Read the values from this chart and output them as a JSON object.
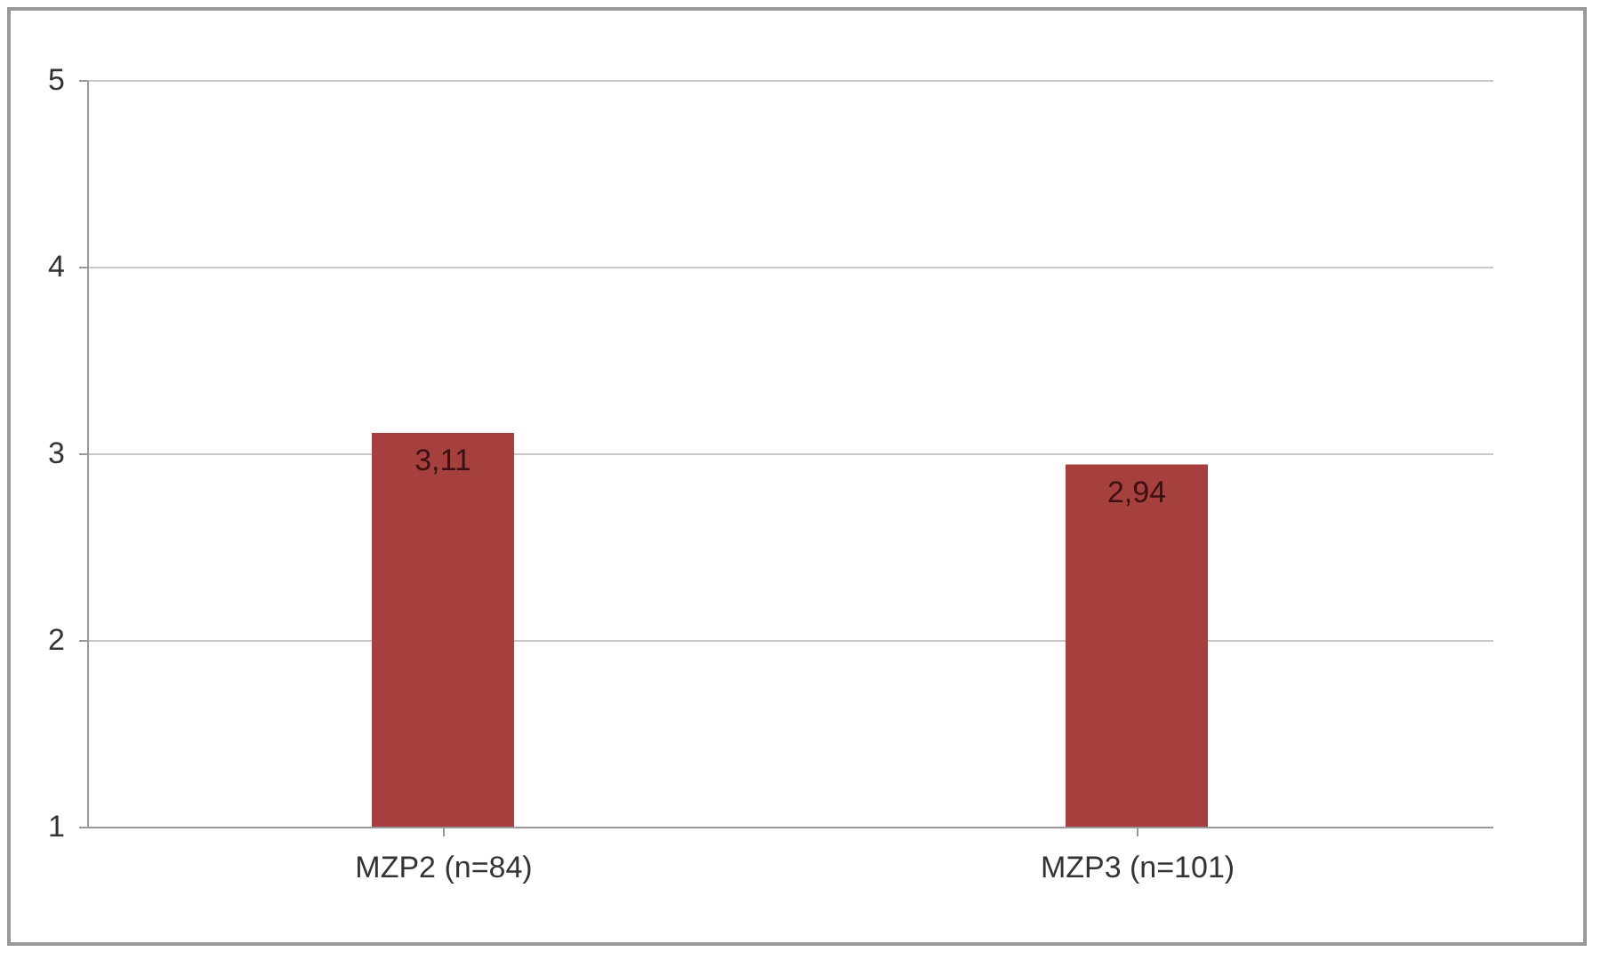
{
  "chart_data": {
    "type": "bar",
    "categories": [
      "MZP2 (n=84)",
      "MZP3 (n=101)"
    ],
    "values": [
      3.11,
      2.94
    ],
    "value_labels": [
      "3,11",
      "2,94"
    ],
    "color": "#a5403e",
    "ylim": [
      1,
      5
    ],
    "yticks": [
      1,
      2,
      3,
      4,
      5
    ],
    "grid": "y"
  }
}
